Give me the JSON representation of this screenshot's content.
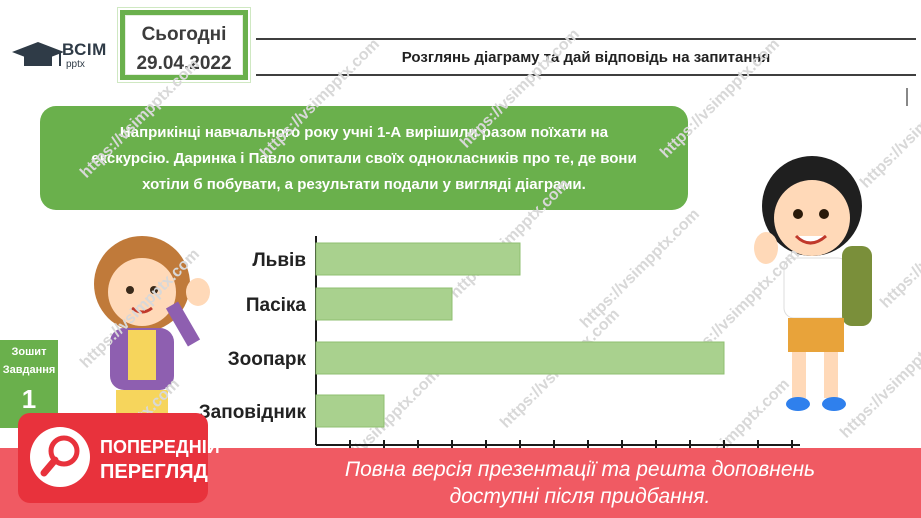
{
  "logo": {
    "brand": "ВСІМ",
    "sub": "pptx"
  },
  "date": {
    "label": "Сьогодні",
    "value": "29.04.2022"
  },
  "title": "Розглянь діаграму та дай відповідь на запитання",
  "task": {
    "lines": [
      "Наприкінці навчального року учні 1-А вирішили разом поїхати на",
      "екскурсію. Даринка і Павло опитали своїх однокласників про те, де вони",
      "хотіли б побувати, а результати подали у вигляді діаграми."
    ]
  },
  "side_tab": {
    "line1": "Зошит",
    "line2": "Завдання",
    "number": "1"
  },
  "watermark": "https://vsimpptx.com",
  "colors": {
    "green": "#6ab04c",
    "bar_fill": "#a9d18e",
    "banner": "#f05a63",
    "badge": "#e8323c"
  },
  "chart_data": {
    "type": "bar",
    "orientation": "horizontal",
    "categories": [
      "Львів",
      "Пасіка",
      "Зоопарк",
      "Заповідник"
    ],
    "values": [
      6,
      4,
      12,
      2
    ],
    "xlim": [
      0,
      14
    ],
    "x_ticks": [
      "1",
      "2",
      "3",
      "4",
      "5",
      "6",
      "7",
      "8",
      "9",
      "10",
      "11",
      "12",
      "13",
      "14"
    ],
    "grid": false
  },
  "banner": {
    "badge_line1": "ПОПЕРЕДНІЙ",
    "badge_line2": "ПЕРЕГЛЯД",
    "text_line1": "Повна версія презентації та решта доповнень",
    "text_line2": "доступні після придбання."
  }
}
